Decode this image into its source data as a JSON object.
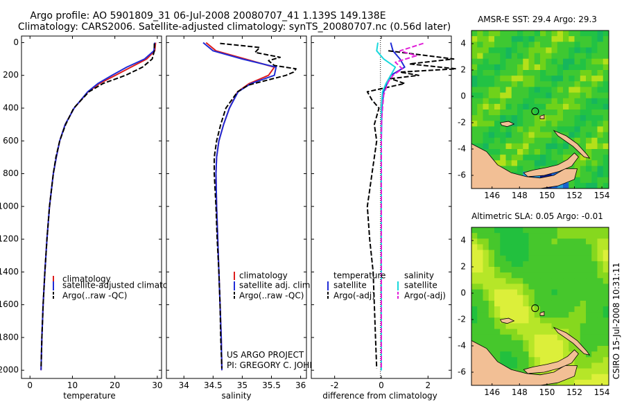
{
  "header": {
    "title_line1": "Argo profile: AO 5901809_31 06-Jul-2008 20080707_41 1.139S 149.138E",
    "title_line2": "Climatology: CARS2006. Satellite-adjusted climatology: synTS_20080707.nc (0.56d later)"
  },
  "credit": {
    "line1": "US ARGO PROJECT",
    "line2": "PI: GREGORY C. JOHNSON"
  },
  "side_stamp": "CSIRO 15-Jul-2008 10:31:11",
  "colors": {
    "red": "#dd1c1c",
    "blue": "#1f2bd6",
    "black": "#000000",
    "cyan": "#18d8dc",
    "magenta": "#e020d8"
  },
  "chart_data": [
    {
      "type": "line",
      "id": "temperature",
      "xlabel": "temperature",
      "ylabel": "",
      "xlim": [
        -2,
        31
      ],
      "ylim": [
        2050,
        0
      ],
      "xticks": [
        0,
        10,
        20,
        30
      ],
      "yticks": [
        0,
        200,
        400,
        600,
        800,
        1000,
        1200,
        1400,
        1600,
        1800,
        2000
      ],
      "legend": [
        "climatology",
        "satellite-adjusted climatology",
        "Argo(..raw -QC)"
      ],
      "series": [
        {
          "name": "climatology",
          "color": "red",
          "dash": false,
          "depth": [
            0,
            50,
            100,
            150,
            200,
            250,
            300,
            400,
            500,
            600,
            700,
            800,
            1000,
            1200,
            1400,
            1600,
            1800,
            2000
          ],
          "values": [
            29.6,
            29.4,
            27.5,
            23.8,
            20.1,
            16.4,
            13.7,
            10.4,
            8.3,
            7.0,
            6.2,
            5.5,
            4.6,
            4.0,
            3.5,
            3.1,
            2.8,
            2.6
          ]
        },
        {
          "name": "satellite-adjusted climatology",
          "color": "blue",
          "dash": false,
          "depth": [
            0,
            50,
            100,
            150,
            200,
            250,
            300,
            400,
            500,
            600,
            700,
            800,
            1000,
            1200,
            1400,
            1600,
            1800,
            2000
          ],
          "values": [
            29.4,
            29.2,
            27.0,
            22.8,
            19.3,
            16.0,
            13.6,
            10.4,
            8.3,
            7.0,
            6.2,
            5.5,
            4.6,
            4.0,
            3.5,
            3.1,
            2.8,
            2.6
          ]
        },
        {
          "name": "Argo(..raw -QC)",
          "color": "black",
          "dash": true,
          "depth": [
            5,
            50,
            100,
            150,
            200,
            250,
            300,
            400,
            500,
            600,
            700,
            800,
            1000,
            1200,
            1400,
            1600,
            1800,
            1990
          ],
          "values": [
            29.3,
            29.3,
            28.8,
            26.5,
            22.5,
            17.2,
            13.9,
            10.3,
            8.4,
            7.0,
            6.1,
            5.5,
            4.6,
            4.0,
            3.5,
            3.1,
            2.8,
            2.6
          ]
        }
      ]
    },
    {
      "type": "line",
      "id": "salinity",
      "xlabel": "salinity",
      "ylabel": "",
      "xlim": [
        33.7,
        36.1
      ],
      "ylim": [
        2050,
        0
      ],
      "xticks": [
        34,
        34.5,
        35,
        35.5,
        36
      ],
      "legend": [
        "climatology",
        "satellite adj. clim.",
        "Argo(..raw -QC)"
      ],
      "series": [
        {
          "name": "climatology",
          "color": "red",
          "dash": false,
          "depth": [
            0,
            50,
            100,
            150,
            200,
            250,
            300,
            400,
            500,
            600,
            700,
            800,
            1000,
            1200,
            1400,
            1600,
            1800,
            2000
          ],
          "values": [
            34.38,
            34.55,
            35.05,
            35.55,
            35.45,
            35.12,
            34.92,
            34.78,
            34.68,
            34.6,
            34.56,
            34.55,
            34.56,
            34.58,
            34.6,
            34.62,
            34.64,
            34.65
          ]
        },
        {
          "name": "satellite adj. clim.",
          "color": "blue",
          "dash": false,
          "depth": [
            0,
            50,
            100,
            150,
            200,
            250,
            300,
            400,
            500,
            600,
            700,
            800,
            1000,
            1200,
            1400,
            1600,
            1800,
            2000
          ],
          "values": [
            34.33,
            34.5,
            35.0,
            35.58,
            35.55,
            35.15,
            34.93,
            34.78,
            34.68,
            34.6,
            34.56,
            34.55,
            34.56,
            34.58,
            34.6,
            34.62,
            34.64,
            34.65
          ]
        },
        {
          "name": "Argo(..raw -QC)",
          "color": "black",
          "dash": true,
          "depth": [
            5,
            30,
            60,
            90,
            110,
            140,
            160,
            180,
            200,
            230,
            260,
            300,
            400,
            500,
            600,
            700,
            800,
            1000,
            1200,
            1400,
            1600,
            1800,
            1990
          ],
          "values": [
            34.62,
            35.3,
            35.22,
            35.65,
            35.45,
            35.55,
            35.92,
            35.88,
            35.75,
            35.42,
            35.1,
            34.92,
            34.72,
            34.63,
            34.56,
            34.52,
            34.52,
            34.55,
            34.57,
            34.6,
            34.62,
            34.63,
            34.65
          ]
        }
      ]
    },
    {
      "type": "line",
      "id": "difference",
      "xlabel": "difference from climatology",
      "ylabel": "",
      "xlim": [
        -3,
        3
      ],
      "ylim": [
        2050,
        0
      ],
      "xticks": [
        -2,
        0,
        2
      ],
      "legend_titles": [
        "temperature",
        "salinity"
      ],
      "legend": [
        "satellite",
        "Argo(-adj)",
        "satellite",
        "Argo(-adj)"
      ],
      "series": [
        {
          "name": "temperature satellite",
          "color": "blue",
          "dash": false,
          "depth": [
            0,
            50,
            100,
            150,
            200,
            250,
            300,
            400,
            600,
            1000,
            2000
          ],
          "values": [
            0.4,
            0.5,
            0.8,
            1.0,
            0.4,
            0.25,
            0.1,
            0.02,
            0,
            0,
            0
          ]
        },
        {
          "name": "temperature Argo(-adj)",
          "color": "black",
          "dash": true,
          "depth": [
            50,
            100,
            130,
            160,
            180,
            200,
            220,
            250,
            300,
            350,
            400,
            500,
            600,
            700,
            800,
            900,
            1000,
            1200,
            1400,
            1600,
            1800,
            1990
          ],
          "values": [
            0.3,
            3.1,
            1.2,
            3.2,
            0.8,
            1.6,
            0.4,
            1.0,
            -0.6,
            -0.4,
            -0.1,
            -0.3,
            -0.2,
            -0.3,
            -0.4,
            -0.5,
            -0.6,
            -0.5,
            -0.35,
            -0.3,
            -0.25,
            -0.2
          ]
        },
        {
          "name": "salinity satellite",
          "color": "cyan",
          "dash": false,
          "depth": [
            0,
            50,
            100,
            150,
            200,
            250,
            300,
            400,
            600,
            1000,
            2000
          ],
          "values": [
            -0.15,
            -0.2,
            0.1,
            0.6,
            0.4,
            0.2,
            0.05,
            0,
            0,
            0,
            0
          ]
        },
        {
          "name": "salinity Argo(-adj)",
          "color": "magenta",
          "dash": true,
          "depth": [
            5,
            50,
            80,
            120,
            160,
            200,
            240,
            280,
            320,
            400,
            500,
            600,
            800,
            1000,
            1200,
            1400,
            1600,
            1800,
            1990
          ],
          "values": [
            1.8,
            0.8,
            1.5,
            0.6,
            0.9,
            0.5,
            0.3,
            0.2,
            0.1,
            0.05,
            0,
            0,
            0,
            0,
            0,
            0,
            0,
            0,
            0
          ]
        }
      ]
    },
    {
      "type": "heatmap",
      "id": "sst-map",
      "title": "AMSR-E SST: 29.4 Argo: 29.3",
      "xlim": [
        144.5,
        154.5
      ],
      "ylim": [
        -7,
        5
      ],
      "xticks": [
        146,
        148,
        150,
        152,
        154
      ],
      "yticks": [
        -6,
        -4,
        -2,
        0,
        2,
        4
      ],
      "profile_location": [
        149.138,
        -1.139
      ]
    },
    {
      "type": "heatmap",
      "id": "sla-map",
      "title": "Altimetric SLA: 0.05 Argo: -0.01",
      "xlim": [
        144.5,
        154.5
      ],
      "ylim": [
        -7,
        5
      ],
      "xticks": [
        146,
        148,
        150,
        152,
        154
      ],
      "yticks": [
        -6,
        -4,
        -2,
        0,
        2,
        4
      ],
      "profile_location": [
        149.138,
        -1.139
      ]
    }
  ]
}
